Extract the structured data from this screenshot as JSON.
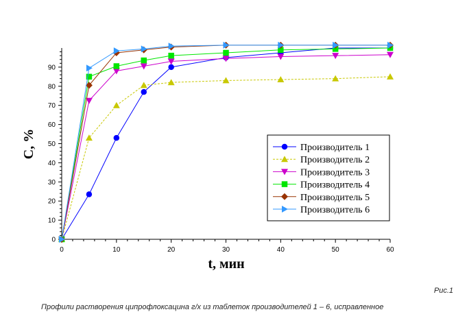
{
  "caption": {
    "figure_label": "Рис.1",
    "text": "Профили растворения ципрофлоксацина г/х из таблеток производителей 1 – 6, исправленное"
  },
  "chart_data": {
    "type": "line",
    "xlabel": "t, мин",
    "ylabel": "C, %",
    "xlim": [
      0,
      60
    ],
    "ylim": [
      0,
      100
    ],
    "x_ticks": [
      0,
      10,
      20,
      30,
      40,
      50,
      60
    ],
    "y_ticks": [
      0,
      10,
      20,
      30,
      40,
      50,
      60,
      70,
      80,
      90
    ],
    "grid": false,
    "legend_position": "lower-right",
    "x": [
      0,
      5,
      10,
      15,
      20,
      30,
      40,
      50,
      60
    ],
    "series": [
      {
        "name": "Производитель 1",
        "color": "#0000ff",
        "marker": "circle",
        "dash": "solid",
        "values": [
          0,
          23.5,
          53,
          77,
          90,
          95,
          97.5,
          100,
          100
        ]
      },
      {
        "name": "Производитель 2",
        "color": "#c8c800",
        "marker": "triangle-up",
        "dash": "dashed",
        "values": [
          0,
          53,
          70,
          80.5,
          82,
          83,
          83.5,
          84,
          85
        ]
      },
      {
        "name": "Производитель 3",
        "color": "#cc00cc",
        "marker": "triangle-down",
        "dash": "solid",
        "values": [
          0,
          72.5,
          88,
          90.5,
          93,
          94.5,
          95.5,
          96,
          96.5
        ]
      },
      {
        "name": "Производитель 4",
        "color": "#00e600",
        "marker": "square",
        "dash": "solid",
        "values": [
          0,
          85,
          90.5,
          93.5,
          96,
          97.5,
          99,
          99.5,
          100
        ]
      },
      {
        "name": "Производитель 5",
        "color": "#993300",
        "marker": "diamond",
        "dash": "solid",
        "values": [
          0,
          80.5,
          97.5,
          99,
          100.5,
          101.5,
          101.5,
          101.5,
          101.5
        ]
      },
      {
        "name": "Производитель 6",
        "color": "#3399ff",
        "marker": "triangle-right",
        "dash": "solid",
        "values": [
          0,
          89.5,
          98.5,
          99.5,
          101,
          101.5,
          101.5,
          101.5,
          101.5
        ]
      }
    ]
  }
}
